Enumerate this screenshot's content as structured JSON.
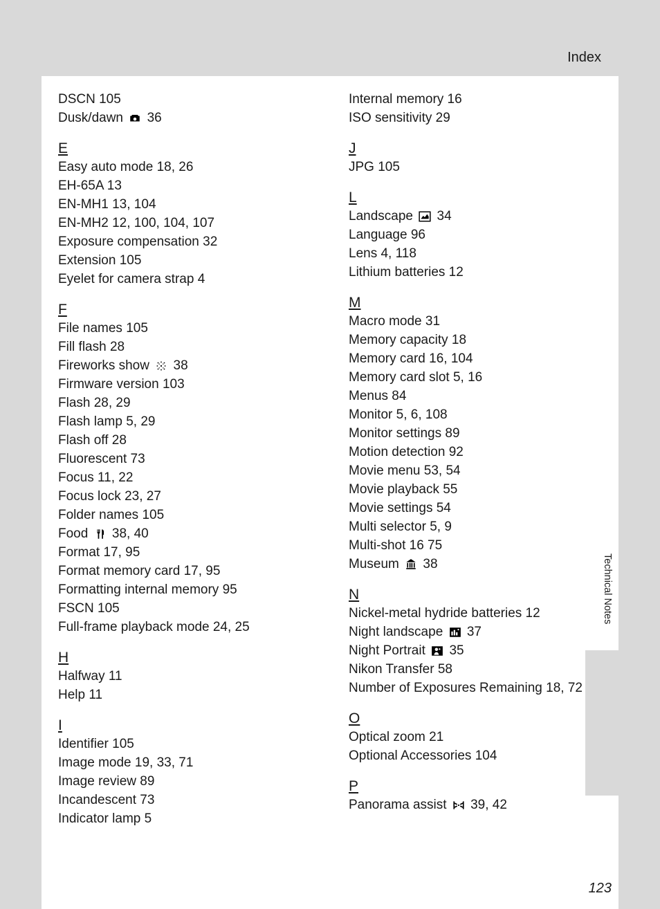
{
  "header": {
    "title": "Index"
  },
  "sidebar": {
    "label": "Technical Notes"
  },
  "page_number": "123",
  "columns": [
    {
      "items": [
        {
          "type": "entry",
          "parts": [
            {
              "t": "text",
              "v": "DSCN 105"
            }
          ]
        },
        {
          "type": "entry",
          "parts": [
            {
              "t": "text",
              "v": "Dusk/dawn "
            },
            {
              "t": "icon",
              "v": "camera-dusk"
            },
            {
              "t": "text",
              "v": " 36"
            }
          ]
        },
        {
          "type": "letter",
          "v": "E"
        },
        {
          "type": "entry",
          "parts": [
            {
              "t": "text",
              "v": "Easy auto mode 18, 26"
            }
          ]
        },
        {
          "type": "entry",
          "parts": [
            {
              "t": "text",
              "v": "EH-65A 13"
            }
          ]
        },
        {
          "type": "entry",
          "parts": [
            {
              "t": "text",
              "v": "EN-MH1 13, 104"
            }
          ]
        },
        {
          "type": "entry",
          "parts": [
            {
              "t": "text",
              "v": "EN-MH2 12, 100, 104, 107"
            }
          ]
        },
        {
          "type": "entry",
          "parts": [
            {
              "t": "text",
              "v": "Exposure compensation 32"
            }
          ]
        },
        {
          "type": "entry",
          "parts": [
            {
              "t": "text",
              "v": "Extension 105"
            }
          ]
        },
        {
          "type": "entry",
          "parts": [
            {
              "t": "text",
              "v": "Eyelet for camera strap 4"
            }
          ]
        },
        {
          "type": "letter",
          "v": "F"
        },
        {
          "type": "entry",
          "parts": [
            {
              "t": "text",
              "v": "File names 105"
            }
          ]
        },
        {
          "type": "entry",
          "parts": [
            {
              "t": "text",
              "v": "Fill flash 28"
            }
          ]
        },
        {
          "type": "entry",
          "parts": [
            {
              "t": "text",
              "v": "Fireworks show "
            },
            {
              "t": "icon",
              "v": "fireworks"
            },
            {
              "t": "text",
              "v": " 38"
            }
          ]
        },
        {
          "type": "entry",
          "parts": [
            {
              "t": "text",
              "v": "Firmware version 103"
            }
          ]
        },
        {
          "type": "entry",
          "parts": [
            {
              "t": "text",
              "v": "Flash 28, 29"
            }
          ]
        },
        {
          "type": "entry",
          "parts": [
            {
              "t": "text",
              "v": "Flash lamp 5, 29"
            }
          ]
        },
        {
          "type": "entry",
          "parts": [
            {
              "t": "text",
              "v": "Flash off 28"
            }
          ]
        },
        {
          "type": "entry",
          "parts": [
            {
              "t": "text",
              "v": "Fluorescent 73"
            }
          ]
        },
        {
          "type": "entry",
          "parts": [
            {
              "t": "text",
              "v": "Focus 11, 22"
            }
          ]
        },
        {
          "type": "entry",
          "parts": [
            {
              "t": "text",
              "v": "Focus lock 23, 27"
            }
          ]
        },
        {
          "type": "entry",
          "parts": [
            {
              "t": "text",
              "v": "Folder names 105"
            }
          ]
        },
        {
          "type": "entry",
          "parts": [
            {
              "t": "text",
              "v": "Food "
            },
            {
              "t": "icon",
              "v": "food"
            },
            {
              "t": "text",
              "v": " 38, 40"
            }
          ]
        },
        {
          "type": "entry",
          "parts": [
            {
              "t": "text",
              "v": "Format 17, 95"
            }
          ]
        },
        {
          "type": "entry",
          "parts": [
            {
              "t": "text",
              "v": "Format memory card 17, 95"
            }
          ]
        },
        {
          "type": "entry",
          "parts": [
            {
              "t": "text",
              "v": "Formatting internal memory 95"
            }
          ]
        },
        {
          "type": "entry",
          "parts": [
            {
              "t": "text",
              "v": "FSCN 105"
            }
          ]
        },
        {
          "type": "entry",
          "parts": [
            {
              "t": "text",
              "v": "Full-frame playback mode 24, 25"
            }
          ]
        },
        {
          "type": "letter",
          "v": "H"
        },
        {
          "type": "entry",
          "parts": [
            {
              "t": "text",
              "v": "Halfway 11"
            }
          ]
        },
        {
          "type": "entry",
          "parts": [
            {
              "t": "text",
              "v": "Help 11"
            }
          ]
        },
        {
          "type": "letter",
          "v": "I"
        },
        {
          "type": "entry",
          "parts": [
            {
              "t": "text",
              "v": "Identifier 105"
            }
          ]
        },
        {
          "type": "entry",
          "parts": [
            {
              "t": "text",
              "v": "Image mode 19, 33, 71"
            }
          ]
        },
        {
          "type": "entry",
          "parts": [
            {
              "t": "text",
              "v": "Image review 89"
            }
          ]
        },
        {
          "type": "entry",
          "parts": [
            {
              "t": "text",
              "v": "Incandescent 73"
            }
          ]
        },
        {
          "type": "entry",
          "parts": [
            {
              "t": "text",
              "v": "Indicator lamp 5"
            }
          ]
        }
      ]
    },
    {
      "items": [
        {
          "type": "entry",
          "parts": [
            {
              "t": "text",
              "v": "Internal memory 16"
            }
          ]
        },
        {
          "type": "entry",
          "parts": [
            {
              "t": "text",
              "v": "ISO sensitivity 29"
            }
          ]
        },
        {
          "type": "letter",
          "v": "J"
        },
        {
          "type": "entry",
          "parts": [
            {
              "t": "text",
              "v": "JPG 105"
            }
          ]
        },
        {
          "type": "letter",
          "v": "L"
        },
        {
          "type": "entry",
          "parts": [
            {
              "t": "text",
              "v": "Landscape "
            },
            {
              "t": "icon",
              "v": "landscape"
            },
            {
              "t": "text",
              "v": " 34"
            }
          ]
        },
        {
          "type": "entry",
          "parts": [
            {
              "t": "text",
              "v": "Language 96"
            }
          ]
        },
        {
          "type": "entry",
          "parts": [
            {
              "t": "text",
              "v": "Lens 4, 118"
            }
          ]
        },
        {
          "type": "entry",
          "parts": [
            {
              "t": "text",
              "v": "Lithium batteries 12"
            }
          ]
        },
        {
          "type": "letter",
          "v": "M"
        },
        {
          "type": "entry",
          "parts": [
            {
              "t": "text",
              "v": "Macro mode 31"
            }
          ]
        },
        {
          "type": "entry",
          "parts": [
            {
              "t": "text",
              "v": "Memory capacity 18"
            }
          ]
        },
        {
          "type": "entry",
          "parts": [
            {
              "t": "text",
              "v": "Memory card 16, 104"
            }
          ]
        },
        {
          "type": "entry",
          "parts": [
            {
              "t": "text",
              "v": "Memory card slot 5, 16"
            }
          ]
        },
        {
          "type": "entry",
          "parts": [
            {
              "t": "text",
              "v": "Menus 84"
            }
          ]
        },
        {
          "type": "entry",
          "parts": [
            {
              "t": "text",
              "v": "Monitor 5, 6, 108"
            }
          ]
        },
        {
          "type": "entry",
          "parts": [
            {
              "t": "text",
              "v": "Monitor settings 89"
            }
          ]
        },
        {
          "type": "entry",
          "parts": [
            {
              "t": "text",
              "v": "Motion detection 92"
            }
          ]
        },
        {
          "type": "entry",
          "parts": [
            {
              "t": "text",
              "v": "Movie menu 53, 54"
            }
          ]
        },
        {
          "type": "entry",
          "parts": [
            {
              "t": "text",
              "v": "Movie playback 55"
            }
          ]
        },
        {
          "type": "entry",
          "parts": [
            {
              "t": "text",
              "v": "Movie settings 54"
            }
          ]
        },
        {
          "type": "entry",
          "parts": [
            {
              "t": "text",
              "v": "Multi selector 5, 9"
            }
          ]
        },
        {
          "type": "entry",
          "parts": [
            {
              "t": "text",
              "v": "Multi-shot 16 75"
            }
          ]
        },
        {
          "type": "entry",
          "parts": [
            {
              "t": "text",
              "v": "Museum "
            },
            {
              "t": "icon",
              "v": "museum"
            },
            {
              "t": "text",
              "v": " 38"
            }
          ]
        },
        {
          "type": "letter",
          "v": "N"
        },
        {
          "type": "entry",
          "parts": [
            {
              "t": "text",
              "v": "Nickel-metal hydride batteries 12"
            }
          ]
        },
        {
          "type": "entry",
          "parts": [
            {
              "t": "text",
              "v": "Night landscape "
            },
            {
              "t": "icon",
              "v": "night-landscape"
            },
            {
              "t": "text",
              "v": " 37"
            }
          ]
        },
        {
          "type": "entry",
          "parts": [
            {
              "t": "text",
              "v": "Night Portrait "
            },
            {
              "t": "icon",
              "v": "night-portrait"
            },
            {
              "t": "text",
              "v": " 35"
            }
          ]
        },
        {
          "type": "entry",
          "parts": [
            {
              "t": "text",
              "v": "Nikon Transfer 58"
            }
          ]
        },
        {
          "type": "entry",
          "parts": [
            {
              "t": "text",
              "v": "Number of Exposures Remaining 18, 72"
            }
          ]
        },
        {
          "type": "letter",
          "v": "O"
        },
        {
          "type": "entry",
          "parts": [
            {
              "t": "text",
              "v": "Optical zoom 21"
            }
          ]
        },
        {
          "type": "entry",
          "parts": [
            {
              "t": "text",
              "v": "Optional Accessories 104"
            }
          ]
        },
        {
          "type": "letter",
          "v": "P"
        },
        {
          "type": "entry",
          "parts": [
            {
              "t": "text",
              "v": "Panorama assist "
            },
            {
              "t": "icon",
              "v": "panorama"
            },
            {
              "t": "text",
              "v": " 39, 42"
            }
          ]
        }
      ]
    }
  ],
  "icons": {
    "camera-dusk": "<svg viewBox='0 0 16 16'><path fill='#000' d='M2 5h1.5l1-1.5h7l1 1.5H14v7H2z M8 7a2 2 0 100 4 2 2 0 000-4z' fill-rule='evenodd'/></svg>",
    "fireworks": "<svg viewBox='0 0 16 16'><circle cx='8' cy='8' r='1' fill='#000'/><circle cx='4' cy='4' r='0.8' fill='#000'/><circle cx='12' cy='4' r='0.8' fill='#000'/><circle cx='4' cy='12' r='0.8' fill='#000'/><circle cx='12' cy='12' r='0.8' fill='#000'/><circle cx='8' cy='3' r='0.8' fill='#000'/><circle cx='8' cy='13' r='0.8' fill='#000'/><circle cx='3' cy='8' r='0.8' fill='#000'/><circle cx='13' cy='8' r='0.8' fill='#000'/><circle cx='5.5' cy='5.5' r='0.6' fill='#000'/><circle cx='10.5' cy='5.5' r='0.6' fill='#000'/><circle cx='5.5' cy='10.5' r='0.6' fill='#000'/><circle cx='10.5' cy='10.5' r='0.6' fill='#000'/></svg>",
    "food": "<svg viewBox='0 0 16 16'><path fill='#000' d='M4 2v4a1.5 1.5 0 001 1.4V14h1.5V7.4A1.5 1.5 0 007.5 6V2h-1v3.5h-.5V2h-1v3.5h-.5V2z M10 2v12h1.5V9h1V5c0-1.5-1-3-2.5-3z'/></svg>",
    "landscape": "<svg viewBox='0 0 16 16'><rect x='1' y='2' width='14' height='12' fill='none' stroke='#000' stroke-width='1.3'/><path fill='#000' d='M3 11l3-4 2 2 3-4 2 3v3H3z'/></svg>",
    "museum": "<svg viewBox='0 0 16 16'><path fill='#000' d='M8 1L2 5h12z M3 6h1.5v6H3z M6 6h1.5v6H6z M8.5 6H10v6H8.5z M11.5 6H13v6h-1.5z M2 12.5h12V14H2z'/></svg>",
    "night-landscape": "<svg viewBox='0 0 16 16'><rect x='1' y='2' width='14' height='12' fill='#000'/><path fill='#fff' d='M3 12h2V7H3z M6 12h2V5H6z M9 12h2V8H9z'/><circle cx='12' cy='4.5' r='1' fill='#fff'/></svg>",
    "night-portrait": "<svg viewBox='0 0 16 16'><rect x='1' y='2' width='14' height='12' fill='#000'/><circle cx='7' cy='6' r='2' fill='#fff'/><path fill='#fff' d='M4 13c0-2 1.5-3.5 3-3.5s3 1.5 3 3.5z'/><path fill='#fff' d='M11 4l.5 1 1 .2-.8.7.2 1-.9-.5-.9.5.2-1-.8-.7 1-.2z'/></svg>",
    "panorama": "<svg viewBox='0 0 16 16'><path fill='none' stroke='#000' stroke-width='1.5' d='M2 3v10M14 3v10M2 5l4 2M14 5l-4 2M2 11l4-2M14 11l-4-2'/><circle cx='8' cy='8' r='1' fill='#000'/></svg>"
  }
}
